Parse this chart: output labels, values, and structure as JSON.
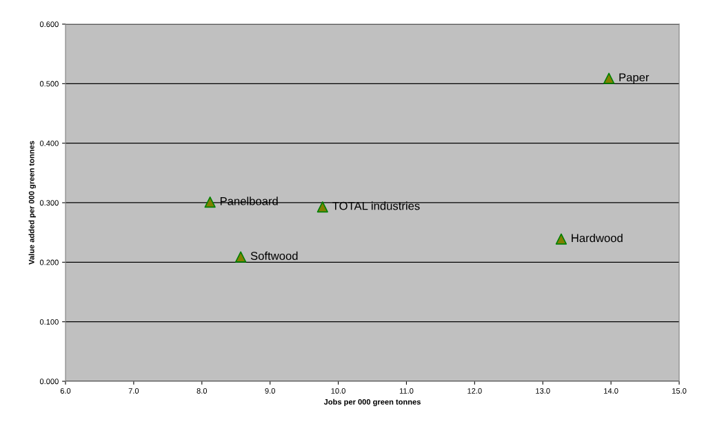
{
  "chart_data": {
    "type": "scatter",
    "xlabel": "Jobs per 000 green tonnes",
    "ylabel": "Value added per 000 green tonnes",
    "x": [
      13.97,
      8.12,
      9.77,
      8.57,
      13.27
    ],
    "series": [
      {
        "color": "#808000",
        "values": [
          0.509,
          0.301,
          0.293,
          0.209,
          0.239
        ]
      }
    ],
    "annotations": [
      {
        "text": "Paper",
        "x": 13.97,
        "y": 0.509
      },
      {
        "text": "Panelboard",
        "x": 8.12,
        "y": 0.301
      },
      {
        "text": "TOTAL industries",
        "x": 9.77,
        "y": 0.293
      },
      {
        "text": "Softwood",
        "x": 8.57,
        "y": 0.209
      },
      {
        "text": "Hardwood",
        "x": 13.27,
        "y": 0.239
      }
    ],
    "xlim": [
      6.0,
      15.0
    ],
    "xticks": [
      {
        "value": 6,
        "label": "6.0"
      },
      {
        "value": 7,
        "label": "7.0"
      },
      {
        "value": 8,
        "label": "8.0"
      },
      {
        "value": 9,
        "label": "9.0"
      },
      {
        "value": 10,
        "label": "10.0"
      },
      {
        "value": 11,
        "label": "11.0"
      },
      {
        "value": 12,
        "label": "12.0"
      },
      {
        "value": 13,
        "label": "13.0"
      },
      {
        "value": 14,
        "label": "14.0"
      },
      {
        "value": 15,
        "label": "15.0"
      }
    ],
    "ylim": [
      0,
      0.6
    ],
    "yticks": [
      {
        "value": 0,
        "label": "0.000"
      },
      {
        "value": 0.1,
        "label": "0.100"
      },
      {
        "value": 0.2,
        "label": "0.200"
      },
      {
        "value": 0.3,
        "label": "0.300"
      },
      {
        "value": 0.4,
        "label": "0.400"
      },
      {
        "value": 0.5,
        "label": "0.500"
      },
      {
        "value": 0.6,
        "label": "0.600"
      }
    ],
    "grid": "y",
    "marker": "triangle"
  }
}
